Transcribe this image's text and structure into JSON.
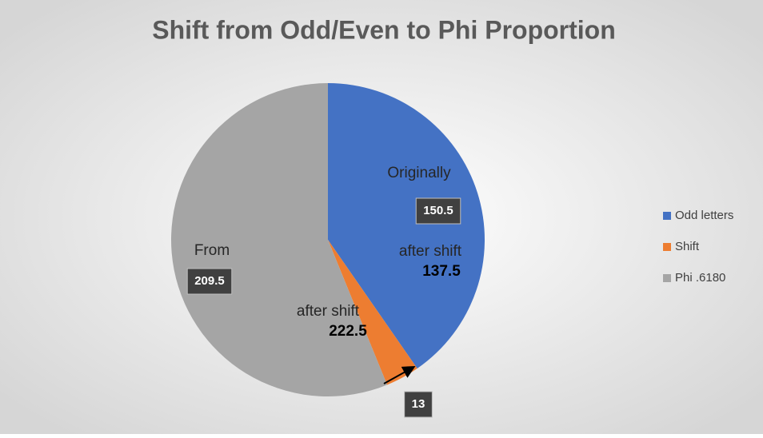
{
  "chart_data": {
    "type": "pie",
    "title": "Shift from Odd/Even to Phi Proportion",
    "series": [
      {
        "name": "Odd letters",
        "color": "#4472c4"
      },
      {
        "name": "Shift",
        "color": "#ed7d31"
      },
      {
        "name": "Phi .6180",
        "color": "#a5a5a5"
      }
    ],
    "values": [
      150.5,
      13,
      209.5
    ],
    "legend": "right",
    "annotations": [
      "Originally",
      "after shift",
      "137.5",
      "From",
      "after shift",
      "222.5"
    ]
  }
}
